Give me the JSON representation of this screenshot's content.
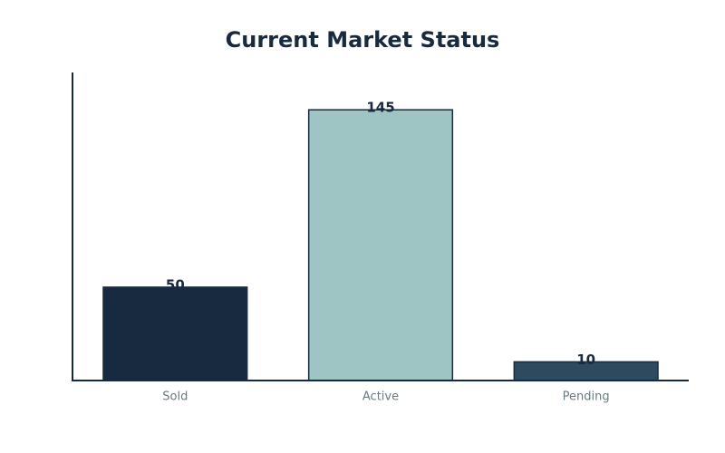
{
  "chart_data": {
    "type": "bar",
    "title": "Current Market Status",
    "categories": [
      "Sold",
      "Active",
      "Pending"
    ],
    "values": [
      50,
      145,
      10
    ],
    "colors": [
      "#172a3f",
      "#9ec4c4",
      "#2d4a5e"
    ],
    "ylim": [
      0,
      165
    ]
  }
}
